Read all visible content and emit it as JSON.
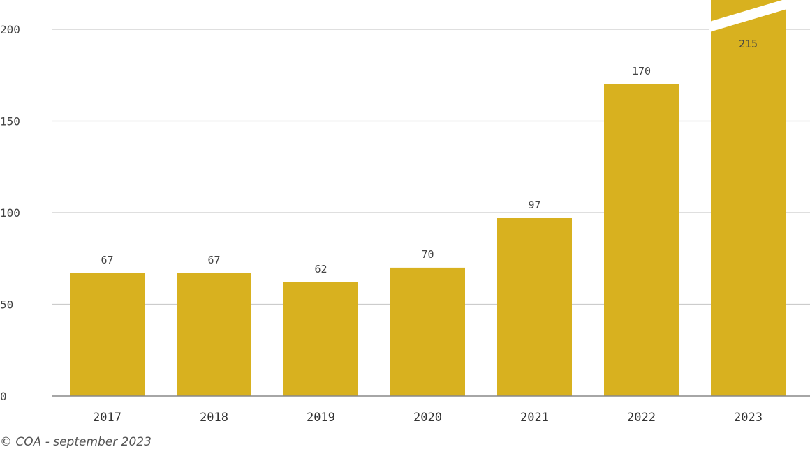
{
  "chart_data": {
    "type": "bar",
    "categories": [
      "2017",
      "2018",
      "2019",
      "2020",
      "2021",
      "2022",
      "2023"
    ],
    "values": [
      67,
      67,
      62,
      70,
      97,
      170,
      215
    ],
    "data_labels": [
      "67",
      "67",
      "62",
      "70",
      "97",
      "170",
      "215"
    ],
    "ylim": [
      0,
      200
    ],
    "yticks": [
      0,
      50,
      100,
      150,
      200
    ],
    "ytick_labels": [
      "0",
      "50",
      "100",
      "150",
      "200"
    ],
    "title": "",
    "xlabel": "",
    "ylabel": "",
    "grid": true,
    "axis_break_on": "2023",
    "colors": {
      "bar": "#D8B11F",
      "grid": "#CCCCCC",
      "axis": "#888888"
    }
  },
  "footer": {
    "credit": "© COA - september 2023"
  }
}
